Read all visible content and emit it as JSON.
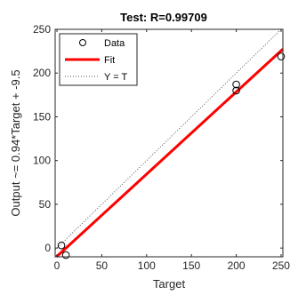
{
  "chart_data": {
    "type": "scatter",
    "title": "Test: R=0.99709",
    "xlabel": "Target",
    "ylabel": "Output ~= 0.94*Target + -9.5",
    "xlim": [
      -2,
      252
    ],
    "ylim": [
      -10,
      250
    ],
    "xticks": [
      0,
      50,
      100,
      150,
      200,
      250
    ],
    "yticks": [
      0,
      50,
      100,
      150,
      200,
      250
    ],
    "grid": false,
    "legend_position": "top-left",
    "series": [
      {
        "name": "Data",
        "kind": "markers",
        "marker": "open-circle",
        "color": "#000000",
        "points": [
          {
            "x": 5,
            "y": 3
          },
          {
            "x": 10,
            "y": -8
          },
          {
            "x": 200,
            "y": 187
          },
          {
            "x": 200,
            "y": 180
          },
          {
            "x": 250,
            "y": 219
          }
        ]
      },
      {
        "name": "Fit",
        "kind": "line",
        "color": "#ff0000",
        "slope": 0.94,
        "intercept": -9.5
      },
      {
        "name": "Y = T",
        "kind": "line",
        "style": "dotted",
        "color": "#555555",
        "slope": 1,
        "intercept": 0
      }
    ]
  }
}
